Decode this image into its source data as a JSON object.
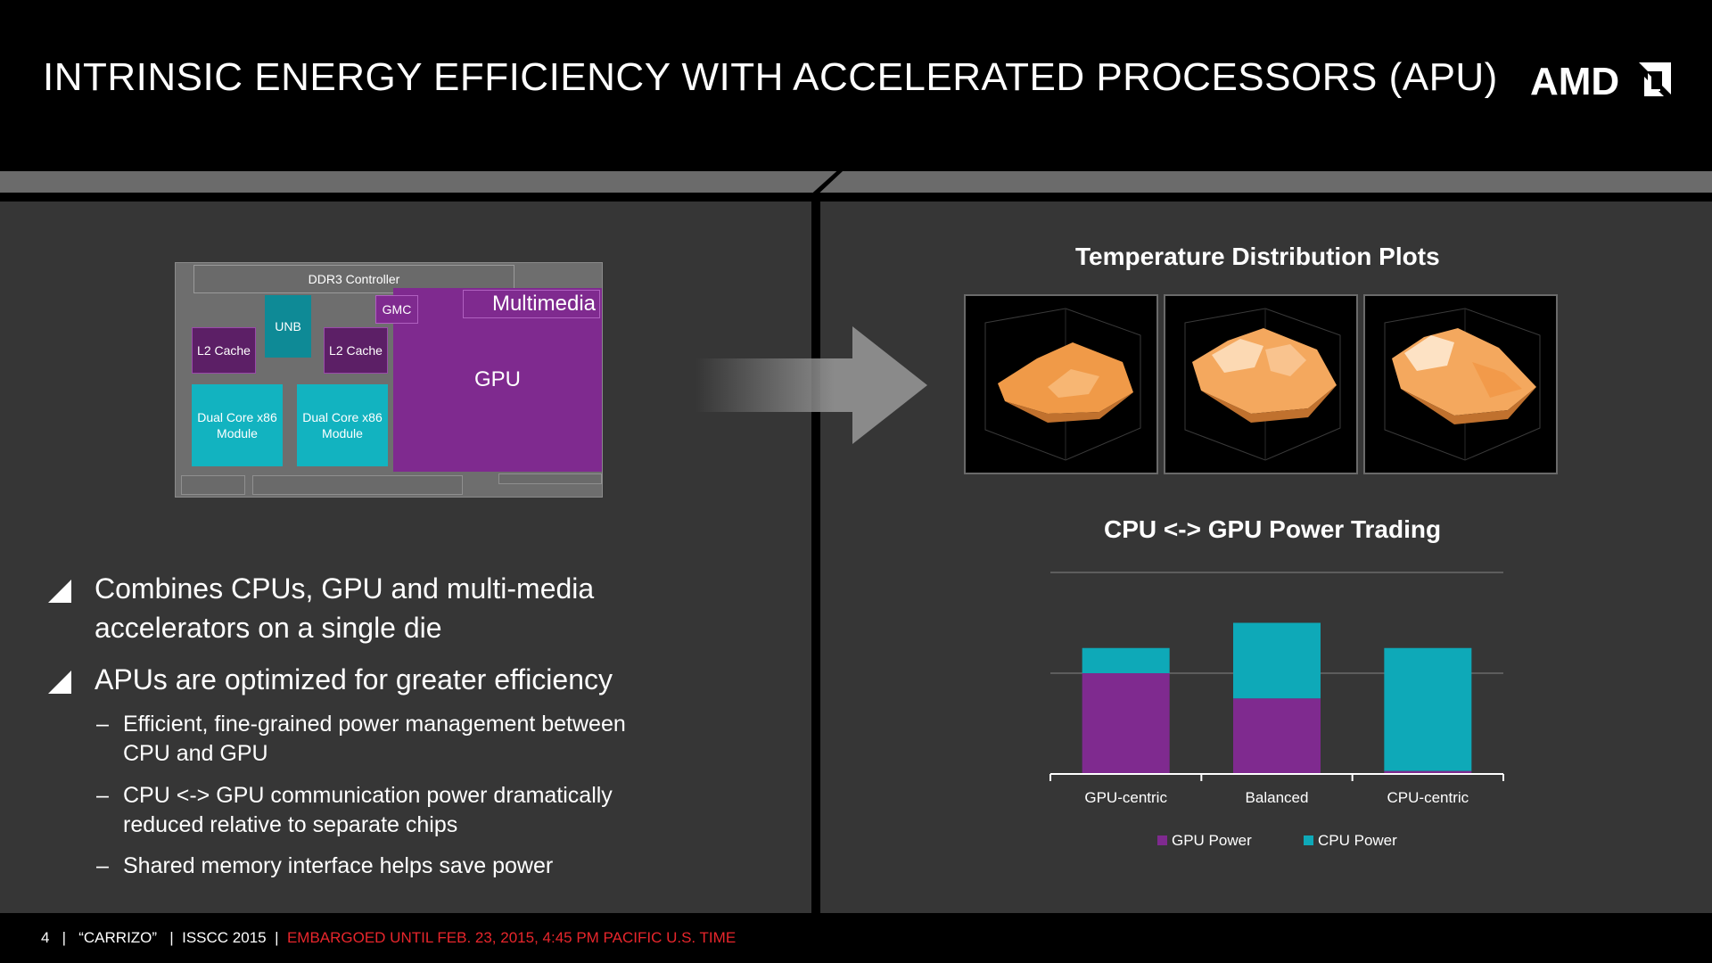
{
  "slide": {
    "title": "INTRINSIC ENERGY EFFICIENCY WITH ACCELERATED PROCESSORS (APU)",
    "logo_text": "AMD",
    "footer": {
      "page": "4",
      "sep1": "|",
      "product": "“CARRIZO”",
      "sep2": "|",
      "event": "ISSCC 2015",
      "sep3": "|",
      "embargo": "EMBARGOED UNTIL FEB. 23, 2015, 4:45 PM PACIFIC U.S. TIME"
    }
  },
  "die": {
    "ddr": "DDR3 Controller",
    "unb": "UNB",
    "gmc": "GMC",
    "l2a": "L2 Cache",
    "l2b": "L2 Cache",
    "multimedia": "Multimedia",
    "gpu": "GPU",
    "core_a": "Dual Core x86 Module",
    "core_b": "Dual Core x86 Module"
  },
  "bullets": {
    "b1": "Combines CPUs, GPU and multi-media accelerators on a single die",
    "b2": "APUs are optimized for greater efficiency",
    "dash": "–",
    "s1": "Efficient, fine-grained power management between CPU and GPU",
    "s2": "CPU <-> GPU communication power dramatically reduced relative to separate chips",
    "s3": "Shared memory interface helps save power"
  },
  "right": {
    "temp_title": "Temperature Distribution Plots",
    "chart_title": "CPU <-> GPU Power Trading"
  },
  "colors": {
    "gpu_purple": "#7f2a8f",
    "cpu_teal": "#0ea9b8",
    "surface": "#f0a050",
    "embargo_red": "#e8262c"
  },
  "chart_data": {
    "type": "bar",
    "stacked": true,
    "categories": [
      "GPU-centric",
      "Balanced",
      "CPU-centric"
    ],
    "series": [
      {
        "name": "GPU Power",
        "values": [
          100,
          75,
          3
        ]
      },
      {
        "name": "CPU Power",
        "values": [
          25,
          75,
          122
        ]
      }
    ],
    "title": "CPU <-> GPU Power Trading",
    "ylim": [
      0,
      200
    ],
    "gridlines": [
      100,
      200
    ],
    "legend": "bottom"
  }
}
